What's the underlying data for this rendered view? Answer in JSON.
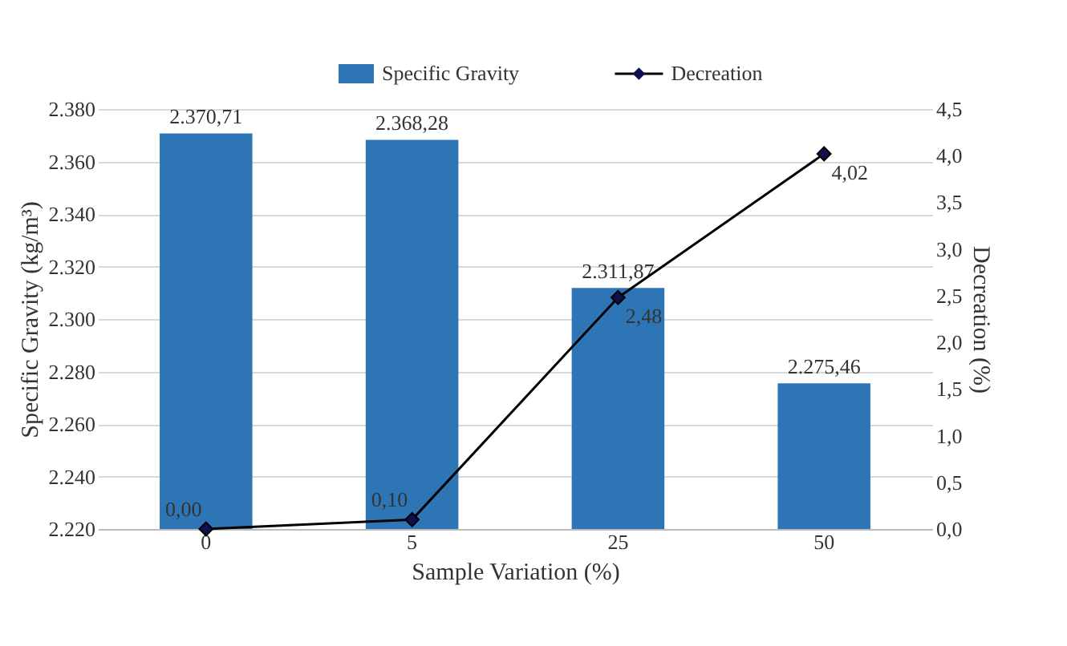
{
  "chart_data": {
    "type": "bar",
    "xlabel": "Sample Variation (%)",
    "ylabel": "Specific Gravity (kg/m³)",
    "y2label": "Decreation (%)",
    "categories": [
      "0",
      "5",
      "25",
      "50"
    ],
    "series": [
      {
        "name": "Specific Gravity",
        "type": "bar",
        "color": "#2e75b6",
        "values": [
          2370.71,
          2368.28,
          2311.87,
          2275.46
        ],
        "value_labels": [
          "2.370,71",
          "2.368,28",
          "2.311,87",
          "2.275,46"
        ]
      },
      {
        "name": "Decreation",
        "type": "line",
        "axis": "y2",
        "color": "#000000",
        "marker": "diamond",
        "values": [
          0.0,
          0.1,
          2.48,
          4.02
        ],
        "value_labels": [
          "0,00",
          "0,10",
          "2,48",
          "4,02"
        ]
      }
    ],
    "ylim": [
      2220,
      2380
    ],
    "yticks": [
      {
        "value": 2220,
        "label": "2.220"
      },
      {
        "value": 2240,
        "label": "2.240"
      },
      {
        "value": 2260,
        "label": "2.260"
      },
      {
        "value": 2280,
        "label": "2.280"
      },
      {
        "value": 2300,
        "label": "2.300"
      },
      {
        "value": 2320,
        "label": "2.320"
      },
      {
        "value": 2340,
        "label": "2.340"
      },
      {
        "value": 2360,
        "label": "2.360"
      },
      {
        "value": 2380,
        "label": "2.380"
      }
    ],
    "y2lim": [
      0,
      4.5
    ],
    "y2ticks": [
      {
        "value": 0,
        "label": "0,0"
      },
      {
        "value": 0.5,
        "label": "0,5"
      },
      {
        "value": 1,
        "label": "1,0"
      },
      {
        "value": 1.5,
        "label": "1,5"
      },
      {
        "value": 2,
        "label": "2,0"
      },
      {
        "value": 2.5,
        "label": "2,5"
      },
      {
        "value": 3,
        "label": "3,0"
      },
      {
        "value": 3.5,
        "label": "3,5"
      },
      {
        "value": 4,
        "label": "4,0"
      },
      {
        "value": 4.5,
        "label": "4,5"
      }
    ],
    "grid": "y",
    "legend": "top"
  }
}
